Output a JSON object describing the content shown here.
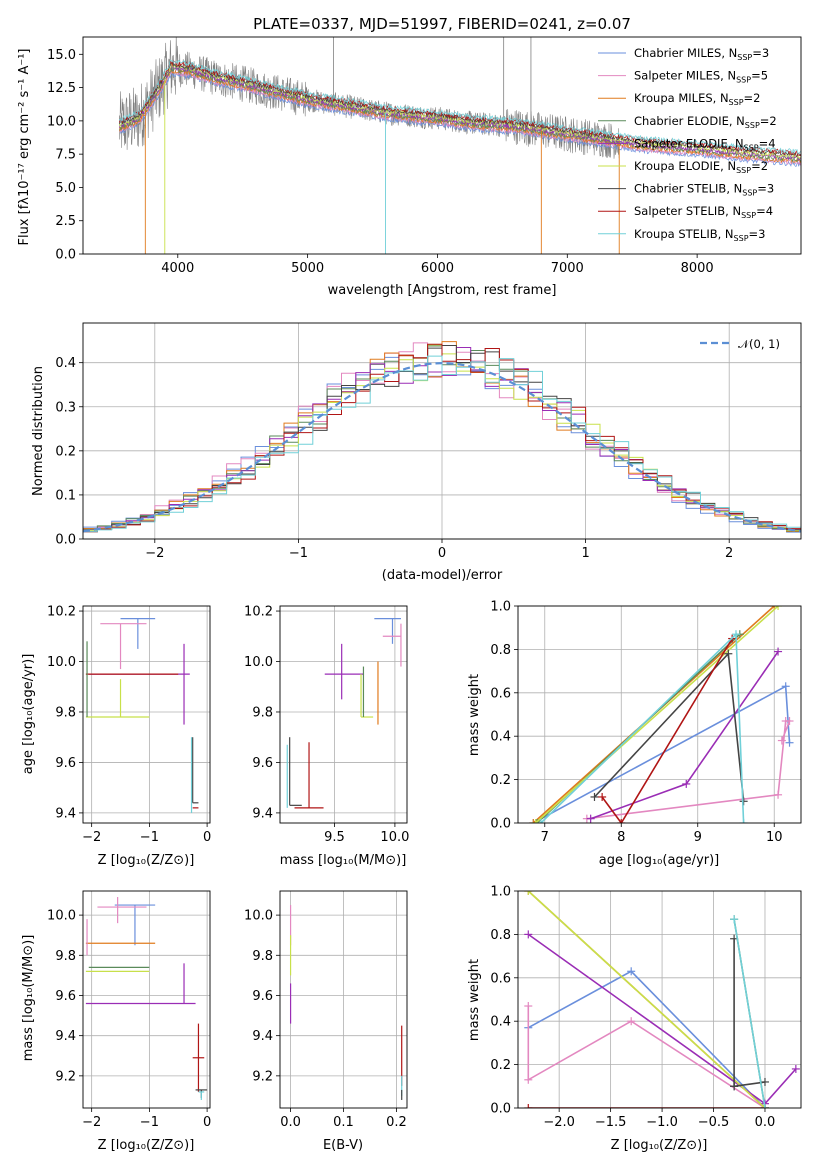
{
  "colors": {
    "chabrier_miles": "#6a8fdc",
    "salpeter_miles": "#e388c0",
    "kroupa_miles": "#e07b1e",
    "chabrier_elodie": "#5a8a5a",
    "salpeter_elodie": "#9a2db5",
    "kroupa_elodie": "#c8e04a",
    "chabrier_stelib": "#444444",
    "salpeter_stelib": "#b01515",
    "kroupa_stelib": "#70d0d8",
    "observed": "#808080",
    "gaussian": "#5b8fd4",
    "grid": "#b0b0b0"
  },
  "chart_data": [
    {
      "id": "spectrum",
      "type": "line",
      "title": "PLATE=0337, MJD=51997, FIBERID=0241, z=0.07",
      "xlabel": "wavelength [Angstrom, rest frame]",
      "ylabel": "Flux [fλ10⁻¹⁷ erg cm⁻² s⁻¹ A⁻¹]",
      "xlim": [
        3270,
        8800
      ],
      "ylim": [
        0,
        16.3
      ],
      "xticks": [
        4000,
        5000,
        6000,
        7000,
        8000
      ],
      "yticks": [
        0.0,
        2.5,
        5.0,
        7.5,
        10.0,
        12.5,
        15.0
      ],
      "grid": false,
      "legend_position": "top-right",
      "series": [
        {
          "name": "Chabrier MILES, N_SSP=3",
          "color_key": "chabrier_miles"
        },
        {
          "name": "Salpeter MILES, N_SSP=5",
          "color_key": "salpeter_miles"
        },
        {
          "name": "Kroupa MILES, N_SSP=2",
          "color_key": "kroupa_miles"
        },
        {
          "name": "Chabrier ELODIE, N_SSP=2",
          "color_key": "chabrier_elodie"
        },
        {
          "name": "Salpeter ELODIE, N_SSP=4",
          "color_key": "salpeter_elodie"
        },
        {
          "name": "Kroupa ELODIE, N_SSP=2",
          "color_key": "kroupa_elodie"
        },
        {
          "name": "Chabrier STELIB, N_SSP=3",
          "color_key": "chabrier_stelib"
        },
        {
          "name": "Salpeter STELIB, N_SSP=4",
          "color_key": "salpeter_stelib"
        },
        {
          "name": "Kroupa STELIB, N_SSP=3",
          "color_key": "kroupa_stelib"
        }
      ],
      "continuum": {
        "x": [
          3550,
          3700,
          3850,
          3950,
          4100,
          4300,
          4500,
          4700,
          5000,
          5300,
          5600,
          6000,
          6300,
          6600,
          7000,
          7300,
          7600,
          8000,
          8400,
          8800
        ],
        "y": [
          9.6,
          10.2,
          12.3,
          14.0,
          13.8,
          13.2,
          12.8,
          12.3,
          11.6,
          11.1,
          10.6,
          10.2,
          9.8,
          9.6,
          9.0,
          8.6,
          8.2,
          7.9,
          7.5,
          7.2
        ]
      }
    },
    {
      "id": "residuals",
      "type": "histogram",
      "xlabel": "(data-model)/error",
      "ylabel": "Normed distribution",
      "xlim": [
        -2.5,
        2.5
      ],
      "ylim": [
        0,
        0.49
      ],
      "xticks": [
        -2,
        -1,
        0,
        1,
        2
      ],
      "yticks": [
        0.0,
        0.1,
        0.2,
        0.3,
        0.4
      ],
      "grid": true,
      "legend_position": "top-right",
      "legend_label": "𝒩(0, 1)",
      "bin_width": 0.1
    },
    {
      "id": "age_vs_z",
      "type": "errorbar",
      "xlabel": "Z [log₁₀(Z/Z⊙)]",
      "ylabel": "age  [log₁₀(age/yr)]",
      "xlim": [
        -2.15,
        0.05
      ],
      "ylim": [
        9.36,
        10.22
      ],
      "xticks": [
        -2,
        -1,
        0
      ],
      "yticks": [
        9.4,
        9.6,
        9.8,
        10.0,
        10.2
      ],
      "grid": true,
      "points": [
        {
          "color_key": "chabrier_miles",
          "x": -1.2,
          "xerr": [
            0.3,
            0.3
          ],
          "y": 10.17,
          "yerr": [
            0.12,
            0.0
          ]
        },
        {
          "color_key": "salpeter_miles",
          "x": -1.5,
          "xerr": [
            0.35,
            0.45
          ],
          "y": 10.15,
          "yerr": [
            0.18,
            0.0
          ]
        },
        {
          "color_key": "salpeter_elodie",
          "x": -0.4,
          "xerr": [
            1.65,
            0.1
          ],
          "y": 9.95,
          "yerr": [
            0.2,
            0.12
          ]
        },
        {
          "color_key": "salpeter_stelib",
          "x": -1.0,
          "xerr": [
            1.1,
            0.5
          ],
          "y": 9.95,
          "yerr": [
            0.0,
            0.0
          ]
        },
        {
          "color_key": "kroupa_elodie",
          "x": -1.5,
          "xerr": [
            0.6,
            0.5
          ],
          "y": 9.78,
          "yerr": [
            0.0,
            0.15
          ]
        },
        {
          "color_key": "chabrier_elodie",
          "x": -2.08,
          "xerr": [
            0.0,
            0.0
          ],
          "y": 9.78,
          "yerr": [
            0.0,
            0.3
          ]
        },
        {
          "color_key": "chabrier_stelib",
          "x": -0.25,
          "xerr": [
            0.0,
            0.1
          ],
          "y": 9.44,
          "yerr": [
            0.0,
            0.26
          ]
        },
        {
          "color_key": "salpeter_stelib",
          "x": -0.25,
          "xerr": [
            0.0,
            0.1
          ],
          "y": 9.42,
          "yerr": [
            0.0,
            0.0
          ]
        },
        {
          "color_key": "kroupa_stelib",
          "x": -0.27,
          "xerr": [
            0.0,
            0.0
          ],
          "y": 9.4,
          "yerr": [
            0.0,
            0.3
          ]
        }
      ]
    },
    {
      "id": "age_vs_mass",
      "type": "errorbar",
      "xlabel": "mass [log₁₀(M/M⊙)]",
      "ylabel": "",
      "xlim": [
        9.05,
        10.1
      ],
      "ylim": [
        9.36,
        10.22
      ],
      "xticks": [
        9.5,
        10.0
      ],
      "yticks": [
        9.4,
        9.6,
        9.8,
        10.0,
        10.2
      ],
      "grid": true,
      "points": [
        {
          "color_key": "chabrier_miles",
          "x": 9.98,
          "xerr": [
            0.15,
            0.07
          ],
          "y": 10.17,
          "yerr": [
            0.1,
            0.0
          ]
        },
        {
          "color_key": "salpeter_miles",
          "x": 10.05,
          "xerr": [
            0.15,
            0.0
          ],
          "y": 10.1,
          "yerr": [
            0.12,
            0.05
          ]
        },
        {
          "color_key": "kroupa_miles",
          "x": 9.86,
          "xerr": [
            0.0,
            0.0
          ],
          "y": 9.9,
          "yerr": [
            0.15,
            0.1
          ]
        },
        {
          "color_key": "salpeter_elodie",
          "x": 9.56,
          "xerr": [
            0.14,
            0.18
          ],
          "y": 9.95,
          "yerr": [
            0.1,
            0.12
          ]
        },
        {
          "color_key": "kroupa_elodie",
          "x": 9.72,
          "xerr": [
            0.0,
            0.1
          ],
          "y": 9.78,
          "yerr": [
            0.0,
            0.17
          ]
        },
        {
          "color_key": "chabrier_elodie",
          "x": 9.74,
          "xerr": [
            0.0,
            0.0
          ],
          "y": 9.78,
          "yerr": [
            0.0,
            0.2
          ]
        },
        {
          "color_key": "chabrier_stelib",
          "x": 9.13,
          "xerr": [
            0.0,
            0.1
          ],
          "y": 9.43,
          "yerr": [
            0.0,
            0.27
          ]
        },
        {
          "color_key": "salpeter_stelib",
          "x": 9.29,
          "xerr": [
            0.12,
            0.12
          ],
          "y": 9.42,
          "yerr": [
            0.0,
            0.26
          ]
        },
        {
          "color_key": "kroupa_stelib",
          "x": 9.11,
          "xerr": [
            0.0,
            0.0
          ],
          "y": 9.42,
          "yerr": [
            0.0,
            0.25
          ]
        }
      ]
    },
    {
      "id": "mass_weight_vs_age",
      "type": "line",
      "xlabel": "age  [log₁₀(age/yr)]",
      "ylabel": "mass weight",
      "xlim": [
        6.65,
        10.35
      ],
      "ylim": [
        0,
        1.0
      ],
      "xticks": [
        7,
        8,
        9,
        10
      ],
      "yticks": [
        0.0,
        0.2,
        0.4,
        0.6,
        0.8,
        1.0
      ],
      "grid": true,
      "series": [
        {
          "color_key": "chabrier_miles",
          "x": [
            6.85,
            10.15,
            10.2
          ],
          "y": [
            0.0,
            0.63,
            0.37
          ]
        },
        {
          "color_key": "salpeter_miles",
          "x": [
            7.55,
            10.05,
            10.15,
            10.2,
            10.1
          ],
          "y": [
            0.02,
            0.13,
            0.47,
            0.47,
            0.38
          ]
        },
        {
          "color_key": "kroupa_miles",
          "x": [
            6.85,
            10.0
          ],
          "y": [
            0.0,
            1.0
          ]
        },
        {
          "color_key": "chabrier_elodie",
          "x": [
            6.9,
            9.55
          ],
          "y": [
            0.0,
            0.87
          ]
        },
        {
          "color_key": "salpeter_elodie",
          "x": [
            7.6,
            8.85,
            10.05
          ],
          "y": [
            0.02,
            0.18,
            0.79
          ]
        },
        {
          "color_key": "kroupa_elodie",
          "x": [
            6.88,
            10.05
          ],
          "y": [
            0.0,
            1.0
          ]
        },
        {
          "color_key": "chabrier_stelib",
          "x": [
            7.65,
            9.4,
            9.6
          ],
          "y": [
            0.12,
            0.78,
            0.1
          ]
        },
        {
          "color_key": "salpeter_stelib",
          "x": [
            7.75,
            8.0,
            9.45
          ],
          "y": [
            0.12,
            0.0,
            0.85
          ]
        },
        {
          "color_key": "kroupa_stelib",
          "x": [
            6.95,
            9.5,
            9.6
          ],
          "y": [
            0.0,
            0.87,
            0.0
          ]
        }
      ]
    },
    {
      "id": "mass_vs_z",
      "type": "errorbar",
      "xlabel": "Z [log₁₀(Z/Z⊙)]",
      "ylabel": "mass [log₁₀(M/M⊙)]",
      "xlim": [
        -2.15,
        0.05
      ],
      "ylim": [
        9.04,
        10.12
      ],
      "xticks": [
        -2,
        -1,
        0
      ],
      "yticks": [
        9.2,
        9.4,
        9.6,
        9.8,
        10.0
      ],
      "grid": true,
      "points": [
        {
          "color_key": "chabrier_miles",
          "x": -1.25,
          "xerr": [
            0.35,
            0.35
          ],
          "y": 10.05,
          "yerr": [
            0.2,
            0.0
          ]
        },
        {
          "color_key": "salpeter_miles",
          "x": -1.55,
          "xerr": [
            0.35,
            0.5
          ],
          "y": 10.04,
          "yerr": [
            0.08,
            0.05
          ]
        },
        {
          "color_key": "kroupa_miles",
          "x": -1.5,
          "xerr": [
            0.6,
            0.6
          ],
          "y": 9.86,
          "yerr": [
            0.0,
            0.0
          ]
        },
        {
          "color_key": "chabrier_elodie",
          "x": -1.5,
          "xerr": [
            0.55,
            0.5
          ],
          "y": 9.74,
          "yerr": [
            0.0,
            0.0
          ]
        },
        {
          "color_key": "kroupa_elodie",
          "x": -1.5,
          "xerr": [
            0.6,
            0.5
          ],
          "y": 9.72,
          "yerr": [
            0.0,
            0.0
          ]
        },
        {
          "color_key": "salpeter_elodie",
          "x": -1.0,
          "xerr": [
            1.1,
            0.8
          ],
          "y": 9.56,
          "yerr": [
            0.0,
            0.0
          ]
        },
        {
          "color_key": "salpeter_elodie",
          "x": -0.4,
          "xerr": [
            0.0,
            0.0
          ],
          "y": 9.56,
          "yerr": [
            0.0,
            0.2
          ]
        },
        {
          "color_key": "salpeter_stelib",
          "x": -0.15,
          "xerr": [
            0.1,
            0.1
          ],
          "y": 9.29,
          "yerr": [
            0.17,
            0.17
          ]
        },
        {
          "color_key": "chabrier_stelib",
          "x": -0.1,
          "xerr": [
            0.1,
            0.1
          ],
          "y": 9.13,
          "yerr": [
            0.04,
            0.0
          ]
        },
        {
          "color_key": "kroupa_stelib",
          "x": -0.1,
          "xerr": [
            0.05,
            0.05
          ],
          "y": 9.12,
          "yerr": [
            0.04,
            0.0
          ]
        },
        {
          "color_key": "salpeter_miles",
          "x": -2.08,
          "xerr": [
            0.0,
            0.0
          ],
          "y": 9.9,
          "yerr": [
            0.1,
            0.08
          ]
        }
      ]
    },
    {
      "id": "mass_vs_ebv",
      "type": "errorbar",
      "xlabel": "E(B-V)",
      "ylabel": "",
      "xlim": [
        -0.02,
        0.22
      ],
      "ylim": [
        9.04,
        10.12
      ],
      "xticks": [
        0.0,
        0.1,
        0.2
      ],
      "yticks": [
        9.2,
        9.4,
        9.6,
        9.8,
        10.0
      ],
      "grid": true,
      "points": [
        {
          "color_key": "salpeter_miles",
          "x": 0.0,
          "xerr": [
            0.0,
            0.0
          ],
          "y": 9.95,
          "yerr": [
            0.1,
            0.1
          ]
        },
        {
          "color_key": "kroupa_elodie",
          "x": 0.0,
          "xerr": [
            0.0,
            0.0
          ],
          "y": 9.8,
          "yerr": [
            0.1,
            0.1
          ]
        },
        {
          "color_key": "salpeter_elodie",
          "x": 0.0,
          "xerr": [
            0.0,
            0.0
          ],
          "y": 9.56,
          "yerr": [
            0.1,
            0.1
          ]
        },
        {
          "color_key": "salpeter_stelib",
          "x": 0.21,
          "xerr": [
            0.0,
            0.0
          ],
          "y": 9.3,
          "yerr": [
            0.15,
            0.15
          ]
        },
        {
          "color_key": "kroupa_stelib",
          "x": 0.21,
          "xerr": [
            0.0,
            0.0
          ],
          "y": 9.15,
          "yerr": [
            0.05,
            0.05
          ]
        },
        {
          "color_key": "chabrier_stelib",
          "x": 0.21,
          "xerr": [
            0.0,
            0.0
          ],
          "y": 9.13,
          "yerr": [
            0.05,
            0.0
          ]
        }
      ]
    },
    {
      "id": "mass_weight_vs_z",
      "type": "line",
      "xlabel": "Z [log₁₀(Z/Z⊙)]",
      "ylabel": "mass weight",
      "xlim": [
        -2.4,
        0.35
      ],
      "ylim": [
        0,
        1.0
      ],
      "xticks": [
        -2.0,
        -1.5,
        -1.0,
        -0.5,
        0.0
      ],
      "yticks": [
        0.0,
        0.2,
        0.4,
        0.6,
        0.8,
        1.0
      ],
      "grid": true,
      "series": [
        {
          "color_key": "chabrier_miles",
          "x": [
            -2.3,
            -1.3,
            0.0
          ],
          "y": [
            0.37,
            0.63,
            0.0
          ]
        },
        {
          "color_key": "salpeter_miles",
          "x": [
            -2.3,
            -2.3,
            -1.3,
            0.0
          ],
          "y": [
            0.47,
            0.13,
            0.4,
            0.0
          ]
        },
        {
          "color_key": "kroupa_miles",
          "x": [
            -2.3,
            0.0
          ],
          "y": [
            1.0,
            0.0
          ]
        },
        {
          "color_key": "chabrier_elodie",
          "x": [
            -0.3,
            0.0
          ],
          "y": [
            0.87,
            0.0
          ]
        },
        {
          "color_key": "salpeter_elodie",
          "x": [
            -2.3,
            0.0,
            0.3
          ],
          "y": [
            0.8,
            0.02,
            0.18
          ]
        },
        {
          "color_key": "kroupa_elodie",
          "x": [
            -2.3,
            0.0
          ],
          "y": [
            1.0,
            0.0
          ]
        },
        {
          "color_key": "chabrier_stelib",
          "x": [
            -0.3,
            -0.3,
            0.0,
            -0.3
          ],
          "y": [
            0.78,
            0.1,
            0.12,
            0.1
          ]
        },
        {
          "color_key": "salpeter_stelib",
          "x": [
            -2.3,
            0.0
          ],
          "y": [
            0.0,
            0.0
          ]
        },
        {
          "color_key": "kroupa_stelib",
          "x": [
            -0.3,
            0.0
          ],
          "y": [
            0.87,
            0.0
          ]
        }
      ]
    }
  ]
}
